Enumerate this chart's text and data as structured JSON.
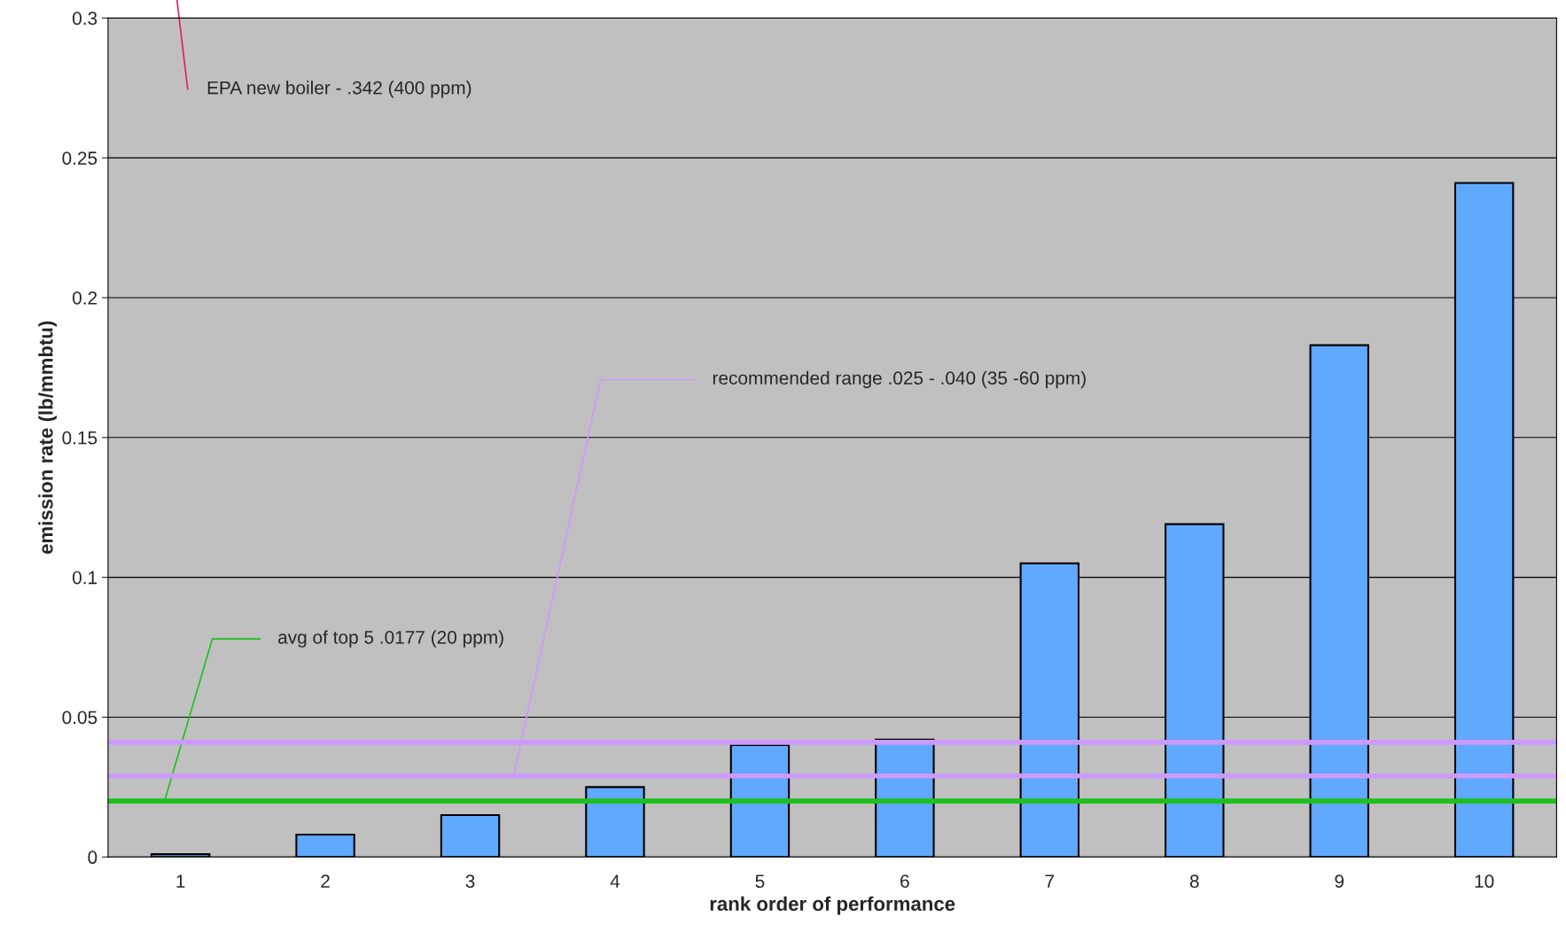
{
  "chart_data": {
    "type": "bar",
    "xlabel": "rank order of performance",
    "ylabel": "emission rate (lb/mmbtu)",
    "categories": [
      "1",
      "2",
      "3",
      "4",
      "5",
      "6",
      "7",
      "8",
      "9",
      "10"
    ],
    "values": [
      0.001,
      0.008,
      0.015,
      0.025,
      0.04,
      0.042,
      0.105,
      0.119,
      0.183,
      0.241
    ],
    "color": "#61a8ff",
    "ylim": [
      0,
      0.3
    ],
    "yticks": [
      0,
      0.05,
      0.1,
      0.15,
      0.2,
      0.25,
      0.3
    ],
    "grid": "y",
    "ref_lines": [
      {
        "axis": "y",
        "value": 0.02,
        "label": "avg of top 5 .0177 (20 ppm)",
        "color": "#1fbf1f"
      },
      {
        "axis": "y",
        "value": 0.029,
        "label": "recommended range .025 - .040 (35 -60 ppm)",
        "color": "#cc99ff"
      },
      {
        "axis": "y",
        "value": 0.041,
        "label": null,
        "color": "#cc99ff"
      }
    ],
    "annotations": [
      "EPA new boiler - .342 (400 ppm)"
    ]
  }
}
